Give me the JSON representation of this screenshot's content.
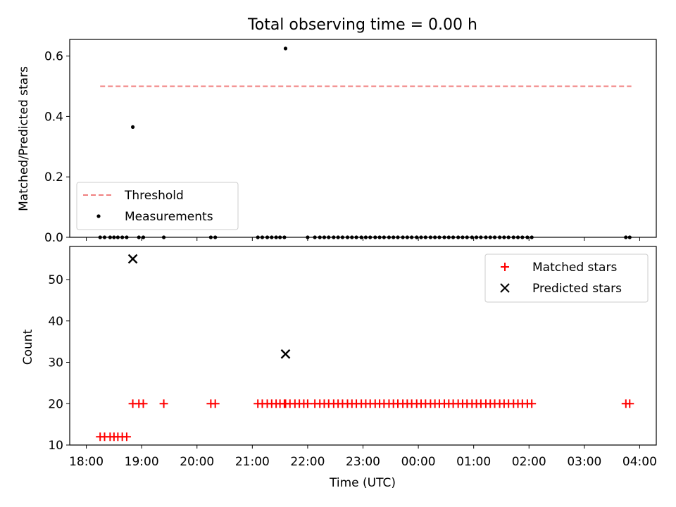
{
  "chart_data": [
    {
      "type": "scatter",
      "title": "Total observing time = 0.00 h",
      "xlabel": "",
      "ylabel": "Matched/Predicted stars",
      "xlim": [
        -0.3,
        10.3
      ],
      "ylim": [
        0,
        0.655
      ],
      "yticks": [
        0.0,
        0.2,
        0.4,
        0.6
      ],
      "ytick_labels": [
        "0.0",
        "0.2",
        "0.4",
        "0.6"
      ],
      "legend_position": "bottom-left",
      "threshold": {
        "name": "Threshold",
        "value": 0.5,
        "x_range": [
          0.25,
          9.85
        ],
        "color": "#f08080"
      },
      "series": [
        {
          "name": "Measurements",
          "color": "#000000",
          "x": [
            0.25,
            0.33,
            0.43,
            0.5,
            0.57,
            0.65,
            0.73,
            0.84,
            0.95,
            1.03,
            1.4,
            2.25,
            2.33,
            3.1,
            3.18,
            3.27,
            3.35,
            3.43,
            3.5,
            3.58,
            3.6,
            4.0,
            4.13,
            4.22,
            4.3,
            4.38,
            4.47,
            4.55,
            4.63,
            4.72,
            4.8,
            4.88,
            4.97,
            5.05,
            5.13,
            5.22,
            5.3,
            5.38,
            5.47,
            5.55,
            5.63,
            5.72,
            5.8,
            5.88,
            5.97,
            6.05,
            6.13,
            6.22,
            6.3,
            6.38,
            6.47,
            6.55,
            6.63,
            6.72,
            6.8,
            6.88,
            6.97,
            7.05,
            7.13,
            7.22,
            7.3,
            7.38,
            7.47,
            7.55,
            7.63,
            7.72,
            7.8,
            7.88,
            7.97,
            8.05,
            9.75,
            9.82
          ],
          "y": [
            0,
            0,
            0,
            0,
            0,
            0,
            0,
            0.365,
            0,
            0,
            0,
            0,
            0,
            0,
            0,
            0,
            0,
            0,
            0,
            0,
            0.625,
            0,
            0,
            0,
            0,
            0,
            0,
            0,
            0,
            0,
            0,
            0,
            0,
            0,
            0,
            0,
            0,
            0,
            0,
            0,
            0,
            0,
            0,
            0,
            0,
            0,
            0,
            0,
            0,
            0,
            0,
            0,
            0,
            0,
            0,
            0,
            0,
            0,
            0,
            0,
            0,
            0,
            0,
            0,
            0,
            0,
            0,
            0,
            0,
            0,
            0,
            0
          ]
        }
      ]
    },
    {
      "type": "scatter",
      "title": "",
      "xlabel": "Time (UTC)",
      "ylabel": "Count",
      "xlim": [
        -0.3,
        10.3
      ],
      "ylim": [
        10,
        58
      ],
      "yticks": [
        10,
        20,
        30,
        40,
        50
      ],
      "ytick_labels": [
        "10",
        "20",
        "30",
        "40",
        "50"
      ],
      "xticks": [
        0,
        1,
        2,
        3,
        4,
        5,
        6,
        7,
        8,
        9,
        10
      ],
      "xtick_labels": [
        "18:00",
        "19:00",
        "20:00",
        "21:00",
        "22:00",
        "23:00",
        "00:00",
        "01:00",
        "02:00",
        "03:00",
        "04:00"
      ],
      "legend_position": "top-right",
      "series": [
        {
          "name": "Matched stars",
          "color": "#ff0000",
          "marker": "plus",
          "x": [
            0.25,
            0.33,
            0.43,
            0.5,
            0.57,
            0.65,
            0.73,
            0.84,
            0.95,
            1.03,
            1.4,
            2.25,
            2.33,
            3.1,
            3.18,
            3.27,
            3.35,
            3.43,
            3.5,
            3.58,
            3.6,
            4.0,
            4.13,
            4.22,
            4.3,
            4.38,
            4.47,
            4.55,
            4.63,
            4.72,
            4.8,
            4.88,
            4.97,
            5.05,
            5.13,
            5.22,
            5.3,
            5.38,
            5.47,
            5.55,
            5.63,
            5.72,
            5.8,
            5.88,
            5.97,
            6.05,
            6.13,
            6.22,
            6.3,
            6.38,
            6.47,
            6.55,
            6.63,
            6.72,
            6.8,
            6.88,
            6.97,
            7.05,
            7.13,
            7.22,
            7.3,
            7.38,
            7.47,
            7.55,
            7.63,
            7.72,
            7.8,
            7.88,
            7.97,
            8.05,
            9.75,
            9.82,
            3.68,
            3.77,
            3.85,
            3.93
          ],
          "y": [
            12,
            12,
            12,
            12,
            12,
            12,
            12,
            20,
            20,
            20,
            20,
            20,
            20,
            20,
            20,
            20,
            20,
            20,
            20,
            20,
            20,
            20,
            20,
            20,
            20,
            20,
            20,
            20,
            20,
            20,
            20,
            20,
            20,
            20,
            20,
            20,
            20,
            20,
            20,
            20,
            20,
            20,
            20,
            20,
            20,
            20,
            20,
            20,
            20,
            20,
            20,
            20,
            20,
            20,
            20,
            20,
            20,
            20,
            20,
            20,
            20,
            20,
            20,
            20,
            20,
            20,
            20,
            20,
            20,
            20,
            20,
            20,
            20,
            20,
            20,
            20
          ]
        },
        {
          "name": "Predicted stars",
          "color": "#000000",
          "marker": "x",
          "x": [
            0.84,
            3.6
          ],
          "y": [
            55,
            32
          ]
        }
      ]
    }
  ]
}
